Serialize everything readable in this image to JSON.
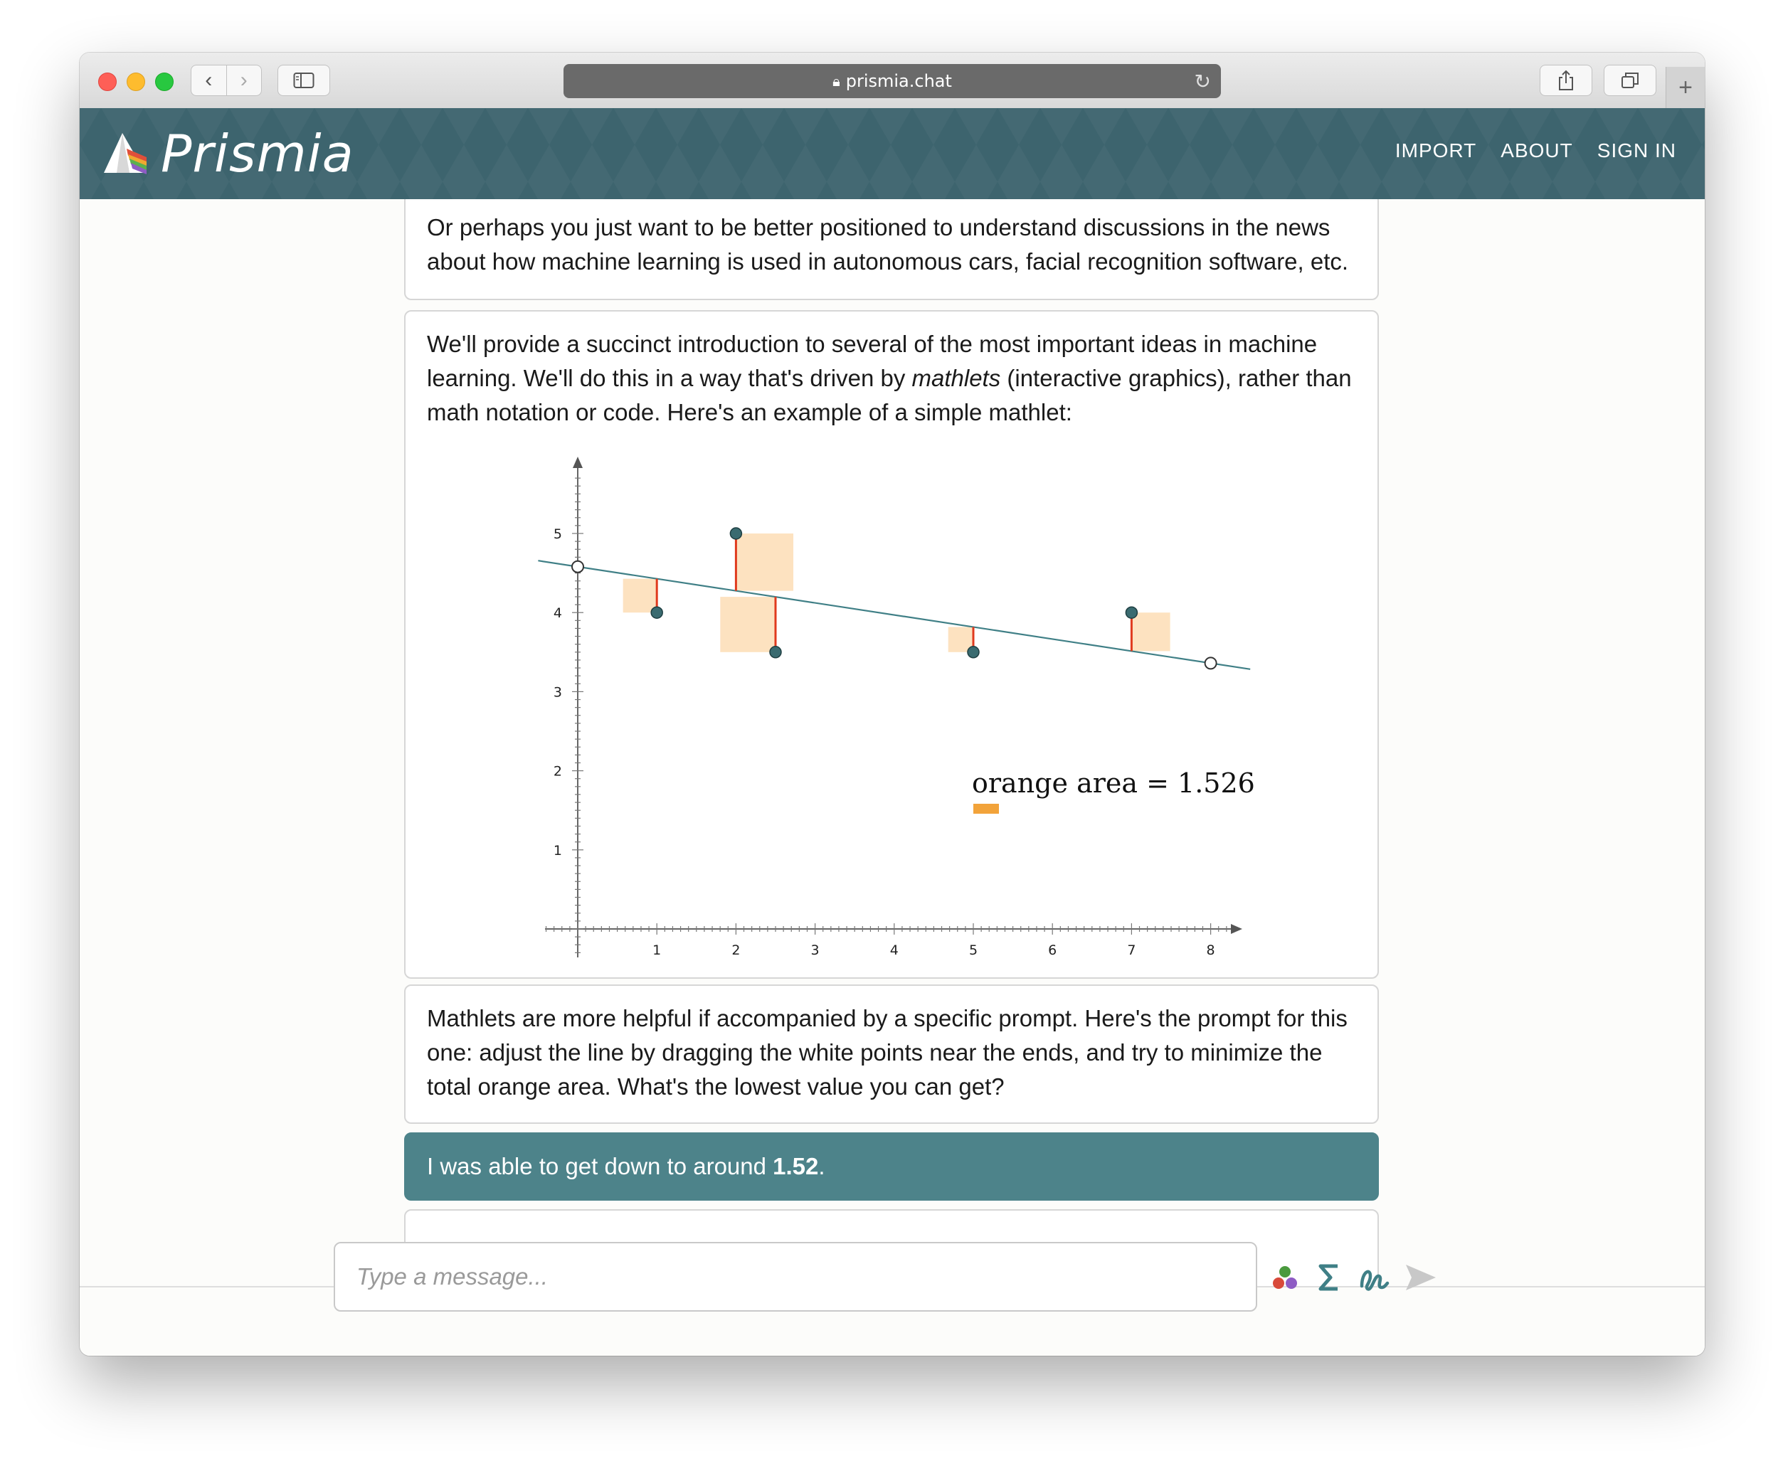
{
  "browser": {
    "url": "prismia.chat",
    "icons": [
      "back-icon",
      "forward-icon",
      "sidebar-icon",
      "lock-icon",
      "reload-icon",
      "share-icon",
      "tabs-icon",
      "plus-icon"
    ]
  },
  "site": {
    "logo_text": "Prismia",
    "nav": [
      "IMPORT",
      "ABOUT",
      "SIGN IN"
    ]
  },
  "messages": [
    {
      "role": "instructor",
      "text": "Or perhaps you just want to be better positioned to understand discussions in the news about how machine learning is used in autonomous cars, facial recognition software, etc."
    },
    {
      "role": "instructor",
      "text_before": "We'll provide a succinct introduction to several of the most important ideas in machine learning. We'll do this in a way that's driven by ",
      "text_em": "mathlets",
      "text_after": " (interactive graphics), rather than math notation or code. Here's an example of a simple mathlet:"
    },
    {
      "role": "instructor",
      "text": "Mathlets are more helpful if accompanied by a specific prompt. Here's the prompt for this one: adjust the line by dragging the white points near the ends, and try to minimize the total orange area. What's the lowest value you can get?"
    },
    {
      "role": "student",
      "text_before": "I was able to get down to around ",
      "text_strong": "1.52",
      "text_after": "."
    }
  ],
  "chart_data": {
    "type": "scatter",
    "x_ticks": [
      "1",
      "2",
      "3",
      "4",
      "5",
      "6",
      "7",
      "8"
    ],
    "y_ticks": [
      "1",
      "2",
      "3",
      "4",
      "5"
    ],
    "xlim": [
      -0.4,
      8.4
    ],
    "ylim": [
      -0.4,
      6.4
    ],
    "points": [
      {
        "x": 1,
        "y": 4
      },
      {
        "x": 2,
        "y": 5
      },
      {
        "x": 2.5,
        "y": 3.5
      },
      {
        "x": 5,
        "y": 3.5
      },
      {
        "x": 7,
        "y": 4
      }
    ],
    "line_handles": [
      {
        "x": 0,
        "y": 4.58
      },
      {
        "x": 8,
        "y": 3.36
      }
    ],
    "annotation": "orange area = 1.526",
    "colors": {
      "point": "#3a6b70",
      "line": "#3f7f86",
      "residual": "#e03a1e",
      "square": "#fde2c0",
      "legend_swatch": "#f2a33a"
    }
  },
  "composer": {
    "placeholder": "Type a message...",
    "icons": [
      "color-dots-icon",
      "sigma-icon",
      "draw-icon",
      "send-icon"
    ]
  }
}
